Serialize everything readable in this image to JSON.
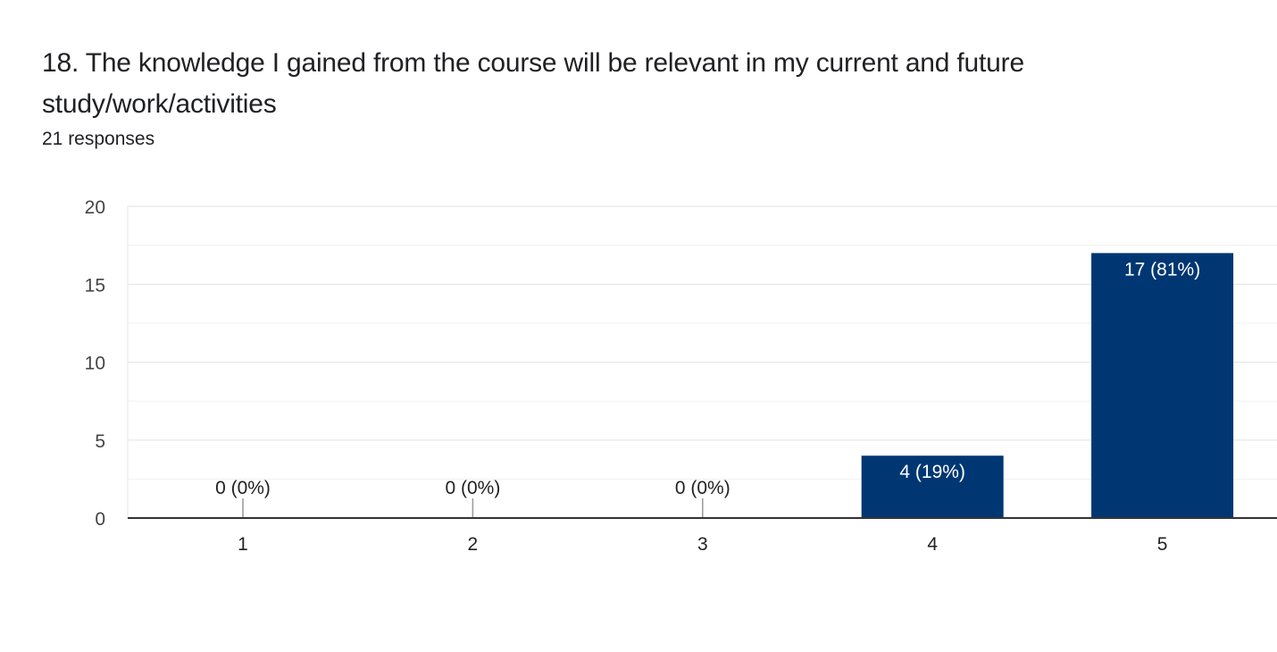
{
  "question": {
    "title": "18. The knowledge I gained from the course will be relevant in my current and future study/work/activities",
    "responses": "21 responses"
  },
  "colors": {
    "bar": "#003772",
    "axis": "#333333",
    "grid": "#e8e8e8",
    "grid_minor": "#f1f1f1",
    "bar_label": "#ffffff",
    "zero_label": "#222222"
  },
  "chart_data": {
    "type": "bar",
    "categories": [
      "1",
      "2",
      "3",
      "4",
      "5"
    ],
    "values": [
      0,
      0,
      0,
      4,
      17
    ],
    "data_labels": [
      "0 (0%)",
      "0 (0%)",
      "0 (0%)",
      "4 (19%)",
      "17 (81%)"
    ],
    "ylim": [
      0,
      20
    ],
    "yticks": [
      0,
      5,
      10,
      15,
      20
    ],
    "minor_gridlines": [
      2.5,
      7.5,
      12.5,
      17.5
    ],
    "grid": true,
    "legend": "none",
    "xlabel": "",
    "ylabel": ""
  }
}
